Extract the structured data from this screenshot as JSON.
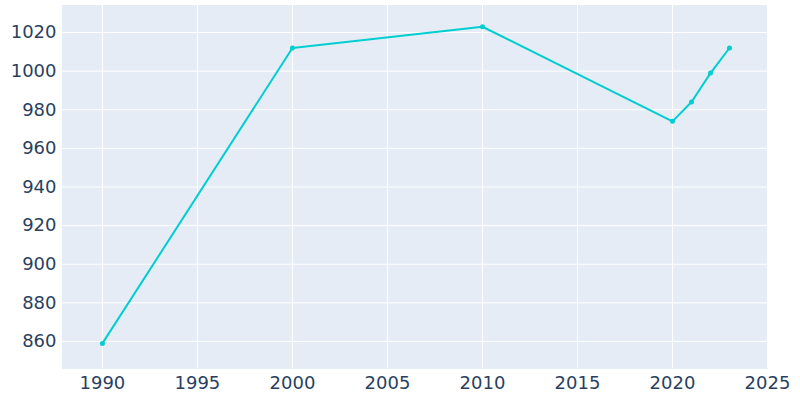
{
  "chart_data": {
    "type": "line",
    "x": [
      1990,
      2000,
      2010,
      2020,
      2021,
      2022,
      2023
    ],
    "values": [
      859,
      1012,
      1023,
      974,
      984,
      999,
      1012
    ],
    "color": "#00ced1",
    "marker": "circle",
    "xlim": [
      1987.9,
      2025
    ],
    "ylim": [
      846,
      1034
    ],
    "xticks": [
      1990,
      1995,
      2000,
      2005,
      2010,
      2015,
      2020,
      2025
    ],
    "yticks": [
      860,
      880,
      900,
      920,
      940,
      960,
      980,
      1000,
      1020
    ],
    "grid": true
  }
}
